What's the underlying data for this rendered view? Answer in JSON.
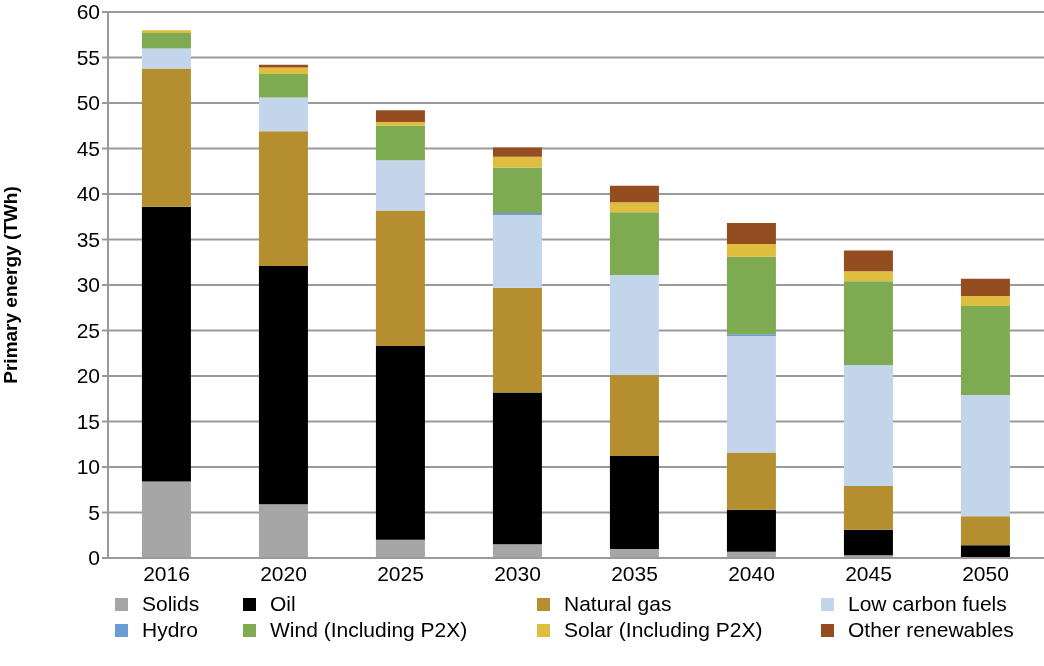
{
  "chart_data": {
    "type": "bar",
    "stacked": true,
    "ylabel": "Primary energy (TWh)",
    "categories": [
      "2016",
      "2020",
      "2025",
      "2030",
      "2035",
      "2040",
      "2045",
      "2050"
    ],
    "ylim": [
      0,
      60
    ],
    "yticks": [
      0,
      5,
      10,
      15,
      20,
      25,
      30,
      35,
      40,
      45,
      50,
      55,
      60
    ],
    "grid": "y",
    "legend": "bottom",
    "series": [
      {
        "name": "Solids",
        "color": "#a6a6a6",
        "values": [
          8.4,
          5.9,
          2.0,
          1.5,
          1.0,
          0.7,
          0.3,
          0
        ]
      },
      {
        "name": "Oil",
        "color": "#000000",
        "values": [
          30.2,
          26.2,
          21.3,
          16.7,
          10.2,
          4.6,
          2.8,
          1.4
        ]
      },
      {
        "name": "Natural gas",
        "color": "#b58f2f",
        "values": [
          15.2,
          14.8,
          14.9,
          11.5,
          8.9,
          6.3,
          4.8,
          3.2
        ]
      },
      {
        "name": "Low carbon fuels",
        "color": "#c3d5eb",
        "values": [
          2.2,
          3.7,
          5.5,
          8.0,
          11.0,
          12.8,
          13.3,
          13.3
        ]
      },
      {
        "name": "Hydro",
        "color": "#6a9bd2",
        "values": [
          0,
          0,
          0,
          0.2,
          0,
          0.2,
          0,
          0
        ]
      },
      {
        "name": "Wind (Including P2X)",
        "color": "#7eab52",
        "values": [
          1.7,
          2.6,
          3.8,
          5.0,
          6.9,
          8.5,
          9.2,
          9.8
        ]
      },
      {
        "name": "Solar (Including P2X)",
        "color": "#dfbd3e",
        "values": [
          0.3,
          0.7,
          0.4,
          1.2,
          1.1,
          1.4,
          1.1,
          1.1
        ]
      },
      {
        "name": "Other renewables",
        "color": "#944d20",
        "values": [
          0,
          0.3,
          1.3,
          1.0,
          1.8,
          2.3,
          2.3,
          1.9
        ]
      }
    ]
  }
}
